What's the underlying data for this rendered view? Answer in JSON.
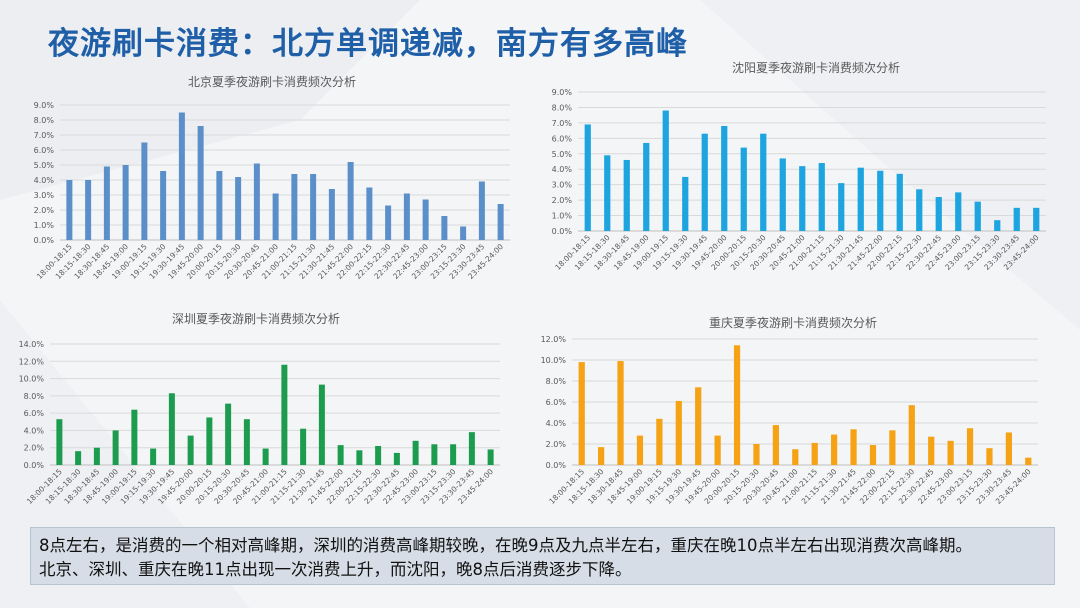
{
  "page": {
    "title": "夜游刷卡消费：北方单调递减，南方有多高峰",
    "note_lines": [
      "8点左右，是消费的一个相对高峰期，深圳的消费高峰期较晚，在晚9点及九点半左右，重庆在晚10点半左右出现消费次高峰期。",
      "北京、深圳、重庆在晚11点出现一次消费上升，而沈阳，晚8点后消费逐步下降。"
    ]
  },
  "chart_data": [
    {
      "type": "bar",
      "title": "北京夏季夜游刷卡消费频次分析",
      "color": "#5b8fc9",
      "ylim": [
        0,
        9
      ],
      "ystep": 1,
      "ytick_decimals": 1,
      "grid": true,
      "categories": [
        "18:00-18:15",
        "18:15-18:30",
        "18:30-18:45",
        "18:45-19:00",
        "19:00-19:15",
        "19:15-19:30",
        "19:30-19:45",
        "19:45-20:00",
        "20:00-20:15",
        "20:15-20:30",
        "20:30-20:45",
        "20:45-21:00",
        "21:00-21:15",
        "21:15-21:30",
        "21:30-21:45",
        "21:45-22:00",
        "22:00-22:15",
        "22:15-22:30",
        "22:30-22:45",
        "22:45-23:00",
        "23:00-23:15",
        "23:15-23:30",
        "23:30-23:45",
        "23:45-24:00"
      ],
      "values": [
        4.0,
        4.0,
        4.9,
        5.0,
        6.5,
        4.6,
        8.5,
        7.6,
        4.6,
        4.2,
        5.1,
        3.1,
        4.4,
        4.4,
        3.4,
        5.2,
        3.5,
        2.3,
        3.1,
        2.7,
        1.6,
        0.9,
        3.9,
        2.4
      ]
    },
    {
      "type": "bar",
      "title": "沈阳夏季夜游刷卡消费频次分析",
      "color": "#1ea5e0",
      "ylim": [
        0,
        9
      ],
      "ystep": 1,
      "ytick_decimals": 1,
      "grid": true,
      "categories": [
        "18:00-18:15",
        "18:15-18:30",
        "18:30-18:45",
        "18:45-19:00",
        "19:00-19:15",
        "19:15-19:30",
        "19:30-19:45",
        "19:45-20:00",
        "20:00-20:15",
        "20:15-20:30",
        "20:30-20:45",
        "20:45-21:00",
        "21:00-21:15",
        "21:15-21:30",
        "21:30-21:45",
        "21:45-22:00",
        "22:00-22:15",
        "22:15-22:30",
        "22:30-22:45",
        "22:45-23:00",
        "23:00-23:15",
        "23:15-23:30",
        "23:30-23:45",
        "23:45-24:00"
      ],
      "values": [
        6.9,
        4.9,
        4.6,
        5.7,
        7.8,
        3.5,
        6.3,
        6.8,
        5.4,
        6.3,
        4.7,
        4.2,
        4.4,
        3.1,
        4.1,
        3.9,
        3.7,
        2.7,
        2.2,
        2.5,
        1.9,
        0.7,
        1.5,
        1.5
      ]
    },
    {
      "type": "bar",
      "title": "深圳夏季夜游刷卡消费频次分析",
      "color": "#1c9c4f",
      "ylim": [
        0,
        14
      ],
      "ystep": 2,
      "ytick_decimals": 1,
      "grid": true,
      "categories": [
        "18:00-18:15",
        "18:15-18:30",
        "18:30-18:45",
        "18:45-19:00",
        "19:00-19:15",
        "19:15-19:30",
        "19:30-19:45",
        "19:45-20:00",
        "20:00-20:15",
        "20:15-20:30",
        "20:30-20:45",
        "20:45-21:00",
        "21:00-21:15",
        "21:15-21:30",
        "21:30-21:45",
        "21:45-22:00",
        "22:00-22:15",
        "22:15-22:30",
        "22:30-22:45",
        "22:45-23:00",
        "23:00-23:15",
        "23:15-23:30",
        "23:30-23:45",
        "23:45-24:00"
      ],
      "values": [
        5.3,
        1.6,
        2.0,
        4.0,
        6.4,
        1.9,
        8.3,
        3.4,
        5.5,
        7.1,
        5.3,
        1.9,
        11.6,
        4.2,
        9.3,
        2.3,
        1.7,
        2.2,
        1.4,
        2.8,
        2.4,
        2.4,
        3.8,
        1.8
      ]
    },
    {
      "type": "bar",
      "title": "重庆夏季夜游刷卡消费频次分析",
      "color": "#f5a214",
      "ylim": [
        0,
        12
      ],
      "ystep": 2,
      "ytick_decimals": 1,
      "grid": true,
      "categories": [
        "18:00-18:15",
        "18:15-18:30",
        "18:30-18:45",
        "18:45-19:00",
        "19:00-19:15",
        "19:15-19:30",
        "19:30-19:45",
        "19:45-20:00",
        "20:00-20:15",
        "20:15-20:30",
        "20:30-20:45",
        "20:45-21:00",
        "21:00-21:15",
        "21:15-21:30",
        "21:30-21:45",
        "21:45-22:00",
        "22:00-22:15",
        "22:15-22:30",
        "22:30-22:45",
        "22:45-23:00",
        "23:00-23:15",
        "23:15-23:30",
        "23:30-23:45",
        "23:45-24:00"
      ],
      "values": [
        9.8,
        1.7,
        9.9,
        2.8,
        4.4,
        6.1,
        7.4,
        2.8,
        11.4,
        2.0,
        3.8,
        1.5,
        2.1,
        2.9,
        3.4,
        1.9,
        3.3,
        5.7,
        2.7,
        2.3,
        3.5,
        1.6,
        3.1,
        0.7
      ]
    }
  ]
}
